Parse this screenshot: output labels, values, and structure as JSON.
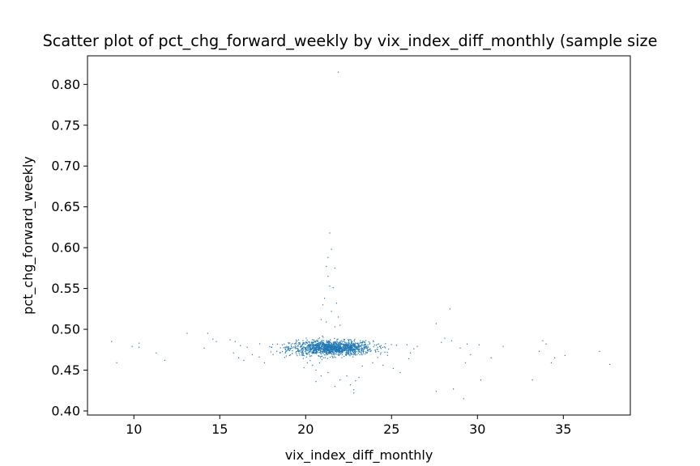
{
  "chart_data": {
    "type": "scatter",
    "title": "Scatter plot of pct_chg_forward_weekly by vix_index_diff_monthly (sample size",
    "xlabel": "vix_index_diff_monthly",
    "ylabel": "pct_chg_forward_weekly",
    "xlim": [
      7.3,
      38.9
    ],
    "ylim": [
      0.395,
      0.835
    ],
    "xticks": [
      10,
      15,
      20,
      25,
      30,
      35
    ],
    "xtick_labels": [
      "10",
      "15",
      "20",
      "25",
      "30",
      "35"
    ],
    "yticks": [
      0.4,
      0.45,
      0.5,
      0.55,
      0.6,
      0.65,
      0.7,
      0.75,
      0.8
    ],
    "ytick_labels": [
      "0.40",
      "0.45",
      "0.50",
      "0.55",
      "0.60",
      "0.65",
      "0.70",
      "0.75",
      "0.80"
    ],
    "grid": false,
    "marker_color": "#1f77b4",
    "series": [
      {
        "points": [
          [
            21.9,
            0.815
          ],
          [
            21.4,
            0.618
          ],
          [
            21.5,
            0.598
          ],
          [
            21.3,
            0.588
          ],
          [
            21.2,
            0.577
          ],
          [
            21.7,
            0.575
          ],
          [
            21.3,
            0.565
          ],
          [
            21.4,
            0.553
          ],
          [
            21.6,
            0.551
          ],
          [
            21.1,
            0.538
          ],
          [
            21.8,
            0.532
          ],
          [
            21.0,
            0.53
          ],
          [
            21.5,
            0.522
          ],
          [
            21.9,
            0.515
          ],
          [
            20.9,
            0.512
          ],
          [
            21.2,
            0.509
          ],
          [
            22.0,
            0.505
          ],
          [
            21.7,
            0.503
          ],
          [
            28.4,
            0.525
          ],
          [
            27.6,
            0.507
          ],
          [
            28.1,
            0.489
          ],
          [
            28.5,
            0.486
          ],
          [
            27.9,
            0.484
          ],
          [
            29.4,
            0.482
          ],
          [
            30.1,
            0.481
          ],
          [
            29.0,
            0.477
          ],
          [
            29.6,
            0.469
          ],
          [
            30.8,
            0.465
          ],
          [
            31.5,
            0.479
          ],
          [
            33.8,
            0.486
          ],
          [
            34.0,
            0.482
          ],
          [
            33.6,
            0.473
          ],
          [
            34.5,
            0.465
          ],
          [
            35.1,
            0.468
          ],
          [
            34.3,
            0.459
          ],
          [
            37.1,
            0.473
          ],
          [
            37.7,
            0.457
          ],
          [
            27.6,
            0.424
          ],
          [
            28.6,
            0.427
          ],
          [
            29.2,
            0.415
          ],
          [
            30.2,
            0.438
          ],
          [
            33.2,
            0.438
          ],
          [
            29.3,
            0.459
          ],
          [
            8.7,
            0.485
          ],
          [
            9.0,
            0.459
          ],
          [
            9.9,
            0.479
          ],
          [
            10.3,
            0.483
          ],
          [
            10.3,
            0.478
          ],
          [
            11.3,
            0.471
          ],
          [
            11.8,
            0.462
          ],
          [
            13.1,
            0.495
          ],
          [
            14.3,
            0.495
          ],
          [
            14.6,
            0.488
          ],
          [
            14.8,
            0.485
          ],
          [
            14.1,
            0.477
          ],
          [
            15.6,
            0.487
          ],
          [
            15.9,
            0.485
          ],
          [
            15.8,
            0.471
          ],
          [
            16.1,
            0.465
          ],
          [
            16.4,
            0.462
          ],
          [
            16.2,
            0.48
          ],
          [
            16.6,
            0.478
          ],
          [
            16.9,
            0.469
          ],
          [
            17.3,
            0.466
          ],
          [
            17.6,
            0.459
          ],
          [
            25.9,
            0.481
          ],
          [
            26.3,
            0.476
          ],
          [
            26.5,
            0.479
          ],
          [
            26.1,
            0.471
          ],
          [
            26.0,
            0.464
          ],
          [
            25.1,
            0.452
          ],
          [
            25.5,
            0.447
          ],
          [
            24.5,
            0.456
          ],
          [
            23.9,
            0.459
          ],
          [
            23.3,
            0.455
          ],
          [
            23.1,
            0.441
          ],
          [
            22.9,
            0.437
          ],
          [
            22.6,
            0.432
          ],
          [
            22.8,
            0.426
          ],
          [
            22.4,
            0.443
          ],
          [
            22.0,
            0.438
          ],
          [
            21.7,
            0.43
          ],
          [
            21.3,
            0.447
          ],
          [
            20.9,
            0.443
          ],
          [
            20.6,
            0.45
          ],
          [
            20.4,
            0.456
          ],
          [
            20.1,
            0.459
          ],
          [
            19.9,
            0.453
          ],
          [
            22.8,
            0.422
          ],
          [
            20.6,
            0.436
          ]
        ],
        "cluster": {
          "x_center": 21.5,
          "y_center": 0.477,
          "x_spread": 1.2,
          "y_spread": 0.0045,
          "count": 1400
        }
      }
    ]
  }
}
